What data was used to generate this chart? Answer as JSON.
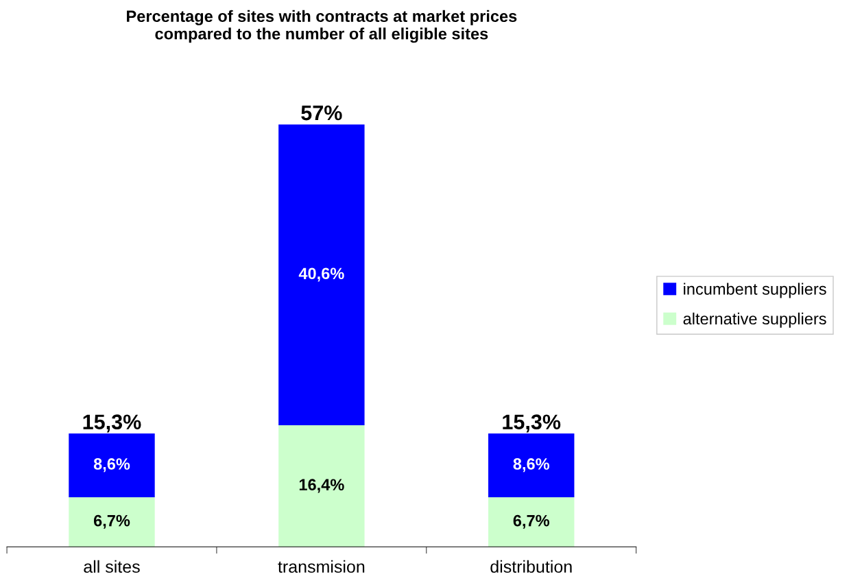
{
  "chart_data": {
    "type": "bar",
    "title": "Percentage of sites with contracts at market prices\ncompared to the number of all eligible sites",
    "categories": [
      "all sites",
      "transmision",
      "distribution"
    ],
    "stacked": true,
    "tick_labels": "x",
    "series": [
      {
        "name": "alternative suppliers",
        "color": "#ccffcc",
        "values": [
          6.7,
          16.4,
          6.7
        ],
        "value_labels": [
          "6,7%",
          "16,4%",
          "6,7%"
        ]
      },
      {
        "name": "incumbent suppliers",
        "color": "#0000ff",
        "values": [
          8.6,
          40.6,
          8.6
        ],
        "value_labels": [
          "8,6%",
          "40,6%",
          "8,6%"
        ]
      }
    ],
    "totals": [
      "15,3%",
      "57%",
      "15,3%"
    ],
    "legend": "right",
    "grid": false
  }
}
